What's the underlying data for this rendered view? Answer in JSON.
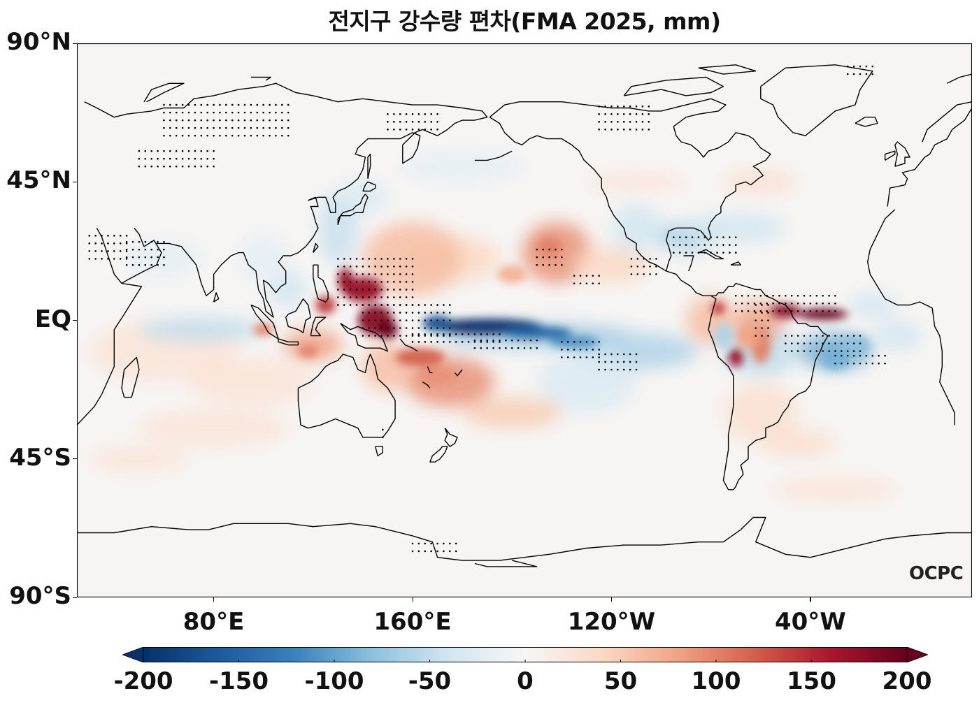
{
  "title": "전지구 강수량 편차(FMA 2025, mm)",
  "logo": "OCPC",
  "chart_data": {
    "type": "heatmap",
    "title": "전지구 강수량 편차(FMA 2025, mm)",
    "projection": "PlateCarree, central longitude 205°E",
    "lon_range": [
      25,
      385
    ],
    "lat_range": [
      -90,
      90
    ],
    "yticks": [
      {
        "lat": 90,
        "label": "90°N"
      },
      {
        "lat": 45,
        "label": "45°N"
      },
      {
        "lat": 0,
        "label": "EQ"
      },
      {
        "lat": -45,
        "label": "45°S"
      },
      {
        "lat": -90,
        "label": "90°S"
      }
    ],
    "xticks": [
      {
        "lon": 80,
        "label": "80°E"
      },
      {
        "lon": 160,
        "label": "160°E"
      },
      {
        "lon": 240,
        "label": "120°W"
      },
      {
        "lon": 320,
        "label": "40°W"
      }
    ],
    "colorbar": {
      "colormap": "RdBu_r",
      "vmin": -200,
      "vmax": 200,
      "extend": "both",
      "ticks": [
        -200,
        -150,
        -100,
        -50,
        0,
        50,
        100,
        150,
        200
      ],
      "tick_labels": [
        "-200",
        "-150",
        "-100",
        "-50",
        "0",
        "50",
        "100",
        "150",
        "200"
      ],
      "placement": "bottom"
    },
    "anomaly_features": [
      {
        "name": "Equatorial central Pacific dry anomaly",
        "lon": 195,
        "lat": -3,
        "value": -200
      },
      {
        "name": "Western Pacific / Philippine Sea wet anomaly",
        "lon": 140,
        "lat": 10,
        "value": 180
      },
      {
        "name": "New Guinea wet anomaly",
        "lon": 148,
        "lat": -3,
        "value": 200
      },
      {
        "name": "Tropical Atlantic ITCZ wet anomaly",
        "lon": 325,
        "lat": 3,
        "value": 200
      },
      {
        "name": "Northern South America wet anomaly",
        "lon": 300,
        "lat": 2,
        "value": 170
      },
      {
        "name": "NE Brazil / SW tropical Atlantic dry anomaly",
        "lon": 330,
        "lat": -8,
        "value": -90
      },
      {
        "name": "South Pacific Convergence Zone wet anomaly",
        "lon": 175,
        "lat": -18,
        "value": 100
      },
      {
        "name": "Subtropical N Pacific wet anomaly",
        "lon": 220,
        "lat": 20,
        "value": 70
      },
      {
        "name": "Indian Ocean equatorial dry anomaly",
        "lon": 75,
        "lat": -3,
        "value": -50
      },
      {
        "name": "Maritime Continent wet anomaly",
        "lon": 120,
        "lat": -8,
        "value": 90
      },
      {
        "name": "Eastern China / Japan dry anomaly",
        "lon": 130,
        "lat": 28,
        "value": -50
      },
      {
        "name": "Gulf of Mexico / SE US dry anomaly",
        "lon": 270,
        "lat": 25,
        "value": -60
      },
      {
        "name": "Eastern equatorial Pacific dry band",
        "lon": 255,
        "lat": -8,
        "value": -60
      }
    ],
    "stippling": "Dots indicate statistically significant anomalies"
  }
}
